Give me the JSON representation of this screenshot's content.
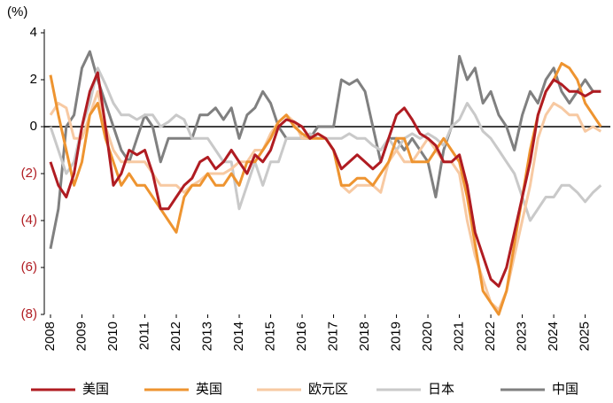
{
  "chart_data": {
    "type": "line",
    "ylabel": "(%)",
    "x": [
      2008,
      2008.25,
      2008.5,
      2008.75,
      2009,
      2009.25,
      2009.5,
      2009.75,
      2010,
      2010.25,
      2010.5,
      2010.75,
      2011,
      2011.25,
      2011.5,
      2011.75,
      2012,
      2012.25,
      2012.5,
      2012.75,
      2013,
      2013.25,
      2013.5,
      2013.75,
      2014,
      2014.25,
      2014.5,
      2014.75,
      2015,
      2015.25,
      2015.5,
      2015.75,
      2016,
      2016.25,
      2016.5,
      2016.75,
      2017,
      2017.25,
      2017.5,
      2017.75,
      2018,
      2018.25,
      2018.5,
      2018.75,
      2019,
      2019.25,
      2019.5,
      2019.75,
      2020,
      2020.25,
      2020.5,
      2020.75,
      2021,
      2021.25,
      2021.5,
      2021.75,
      2022,
      2022.25,
      2022.5,
      2022.75,
      2023,
      2023.25,
      2023.5,
      2023.75,
      2024,
      2024.25,
      2024.5,
      2024.75,
      2025,
      2025.25,
      2025.5
    ],
    "series": [
      {
        "name": "美国",
        "color": "#b01c22",
        "values": [
          -1.5,
          -2.5,
          -3,
          -2,
          0,
          1.5,
          2.3,
          0,
          -2.5,
          -2,
          -1,
          -1.2,
          -1,
          -2,
          -3.5,
          -3.5,
          -3,
          -2.5,
          -2.2,
          -1.5,
          -1.3,
          -1.8,
          -1.5,
          -1,
          -1.5,
          -2,
          -1.2,
          -1.5,
          -1,
          0,
          0.3,
          0.2,
          0,
          -0.5,
          -0.3,
          -0.5,
          -1,
          -1.8,
          -1.5,
          -1.2,
          -1.5,
          -1.8,
          -1.5,
          -0.5,
          0.5,
          0.8,
          0.3,
          -0.3,
          -0.5,
          -0.8,
          -1.5,
          -1.5,
          -1.2,
          -2.5,
          -4.5,
          -5.5,
          -6.5,
          -6.8,
          -6,
          -4.5,
          -3,
          -1.5,
          0.5,
          1.5,
          2,
          1.8,
          1.5,
          1.5,
          1.3,
          1.5,
          1.5
        ]
      },
      {
        "name": "英国",
        "color": "#ee9430",
        "values": [
          2.2,
          0.5,
          -1,
          -2.5,
          -1.5,
          0.5,
          1,
          -0.5,
          -1.5,
          -2.5,
          -2,
          -2.5,
          -2.5,
          -3,
          -3.5,
          -4,
          -4.5,
          -3,
          -2.5,
          -2.5,
          -2,
          -2.5,
          -2.5,
          -2,
          -2.5,
          -1.5,
          -1.5,
          -1,
          -0.5,
          0.2,
          0.5,
          0,
          -0.3,
          -0.5,
          -0.5,
          -0.5,
          -1,
          -2.5,
          -2.5,
          -2.2,
          -2.2,
          -2.5,
          -2,
          -1.5,
          -0.5,
          -0.5,
          -1.5,
          -1.5,
          -1.5,
          -1,
          -0.5,
          -1,
          -1.5,
          -3,
          -5,
          -7,
          -7.5,
          -8,
          -7,
          -5,
          -3,
          -1,
          0.5,
          1.5,
          2,
          2.7,
          2.5,
          2,
          1,
          0.5,
          0
        ]
      },
      {
        "name": "欧元区",
        "color": "#f7c9a2",
        "values": [
          0.5,
          1,
          0.8,
          -0.5,
          -0.5,
          0.5,
          1.5,
          0,
          -1,
          -1.5,
          -1.5,
          -1.5,
          -1.5,
          -2,
          -2.5,
          -2.5,
          -2.5,
          -2.8,
          -2.5,
          -2.3,
          -2,
          -2,
          -2,
          -1.8,
          -1.5,
          -1.5,
          -1,
          -1,
          -0.3,
          0.2,
          0.5,
          0.2,
          -0.5,
          -0.5,
          -0.3,
          -0.5,
          -1,
          -2.5,
          -2.8,
          -2.5,
          -2.5,
          -2.5,
          -2.8,
          -1.5,
          -1,
          -1.5,
          -1.5,
          -1,
          -0.5,
          -1,
          -1.5,
          -1.5,
          -2,
          -4,
          -5.5,
          -6.5,
          -7.5,
          -7.8,
          -7,
          -5.5,
          -4,
          -2.5,
          -0.5,
          0.5,
          1,
          0.8,
          0.5,
          0.5,
          -0.2,
          0,
          -0.2
        ]
      },
      {
        "name": "日本",
        "color": "#c9c9c9",
        "values": [
          0,
          -1,
          -2,
          -1.5,
          0,
          1,
          2.5,
          1.8,
          1,
          0.5,
          0.5,
          0.3,
          0.5,
          0.5,
          0,
          0.2,
          0.5,
          0.3,
          -0.5,
          -0.5,
          -0.5,
          -1,
          -1.5,
          -1.5,
          -3.5,
          -2.5,
          -1.5,
          -2.5,
          -1.5,
          -1.5,
          -0.5,
          -0.5,
          -0.5,
          -0.3,
          -0.5,
          -0.5,
          -0.5,
          -0.5,
          -0.3,
          -0.5,
          -0.5,
          -0.8,
          -1,
          -0.5,
          -1,
          -0.5,
          -0.3,
          -0.5,
          -0.3,
          -0.5,
          -0.8,
          0,
          0.3,
          1,
          0.5,
          -0.2,
          -0.5,
          -1,
          -1.5,
          -2,
          -3,
          -4,
          -3.5,
          -3,
          -3,
          -2.5,
          -2.5,
          -2.8,
          -3.2,
          -2.8,
          -2.5
        ]
      },
      {
        "name": "中国",
        "color": "#808080",
        "values": [
          -5.2,
          -3.5,
          0,
          0.5,
          2.5,
          3.2,
          2,
          1,
          0,
          -1,
          -1.5,
          -0.5,
          0.5,
          0,
          -1.5,
          -0.5,
          -0.5,
          -0.5,
          -0.5,
          0.5,
          0.5,
          0.8,
          0.3,
          0.8,
          -0.5,
          0.5,
          0.8,
          1.5,
          1,
          0,
          -0.5,
          -0.5,
          -0.5,
          -0.5,
          0,
          0,
          0,
          2,
          1.8,
          2,
          1.5,
          0,
          -1.5,
          -0.5,
          -0.5,
          -1,
          -0.5,
          -1,
          -1.5,
          -3,
          -1,
          0,
          3,
          2,
          2.5,
          1,
          1.5,
          0.5,
          0,
          -1,
          0.5,
          1.5,
          1,
          2,
          2.5,
          1.5,
          1,
          1.5,
          2,
          1.5,
          1.5
        ]
      }
    ],
    "xlim": [
      2008,
      2025.8
    ],
    "xticks": [
      2008,
      2009,
      2010,
      2011,
      2012,
      2013,
      2014,
      2015,
      2016,
      2017,
      2018,
      2019,
      2020,
      2021,
      2022,
      2023,
      2024,
      2025
    ],
    "ylim": [
      -8,
      4
    ],
    "yticks": [
      4,
      2,
      0,
      {
        "value": -2,
        "label": "(2)"
      },
      {
        "value": -4,
        "label": "(4)"
      },
      {
        "value": -6,
        "label": "(6)"
      },
      {
        "value": -8,
        "label": "(8)"
      }
    ]
  }
}
